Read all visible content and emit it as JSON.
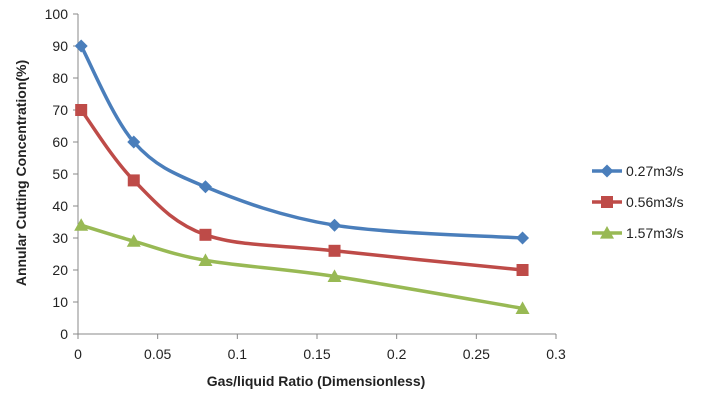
{
  "chart_data": {
    "type": "line",
    "title": "",
    "xlabel": "Gas/liquid Ratio (Dimensionless)",
    "ylabel": "Annular Cutting Concentration(%)",
    "xlim": [
      0,
      0.3
    ],
    "ylim": [
      0,
      100
    ],
    "xticks": [
      0,
      0.05,
      0.1,
      0.15,
      0.2,
      0.25,
      0.3
    ],
    "xtick_labels": [
      "0",
      "0.05",
      "0.1",
      "0.15",
      "0.2",
      "0.25",
      "0.3"
    ],
    "yticks": [
      0,
      10,
      20,
      30,
      40,
      50,
      60,
      70,
      80,
      90,
      100
    ],
    "ytick_labels": [
      "0",
      "10",
      "20",
      "30",
      "40",
      "50",
      "60",
      "70",
      "80",
      "90",
      "100"
    ],
    "grid": false,
    "smooth": true,
    "legend_position": "right",
    "series": [
      {
        "name": "0.27m3/s",
        "color": "#4a7ebb",
        "marker": "diamond",
        "x": [
          0.002,
          0.035,
          0.08,
          0.161,
          0.279
        ],
        "y": [
          90,
          60,
          46,
          34,
          30
        ]
      },
      {
        "name": "0.56m3/s",
        "color": "#be4b48",
        "marker": "square",
        "x": [
          0.002,
          0.035,
          0.08,
          0.161,
          0.279
        ],
        "y": [
          70,
          48,
          31,
          26,
          20
        ]
      },
      {
        "name": "1.57m3/s",
        "color": "#98b954",
        "marker": "triangle",
        "x": [
          0.002,
          0.035,
          0.08,
          0.161,
          0.279
        ],
        "y": [
          34,
          29,
          23,
          18,
          8
        ]
      }
    ]
  }
}
